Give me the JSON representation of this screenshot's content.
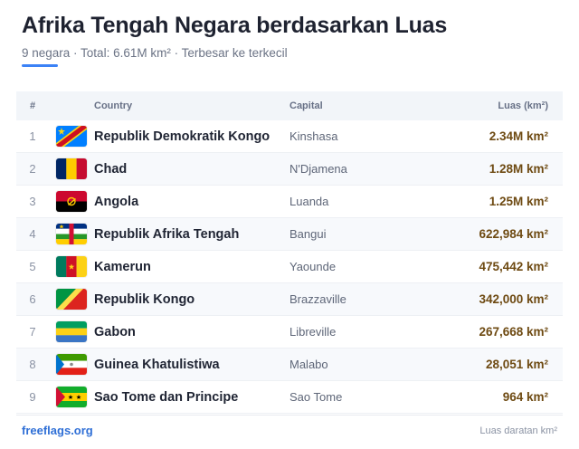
{
  "header": {
    "title": "Afrika Tengah Negara berdasarkan Luas",
    "subtitle": "9 negara · Total: 6.61M km² · Terbesar ke terkecil",
    "accent_color": "#3b82f6"
  },
  "table": {
    "columns": {
      "num": "#",
      "country": "Country",
      "capital": "Capital",
      "area": "Luas (km²)"
    },
    "rows": [
      {
        "num": "1",
        "country": "Republik Demokratik Kongo",
        "capital": "Kinshasa",
        "area": "2.34M km²",
        "flag_icon": "flag-cd-icon"
      },
      {
        "num": "2",
        "country": "Chad",
        "capital": "N'Djamena",
        "area": "1.28M km²",
        "flag_icon": "flag-td-icon"
      },
      {
        "num": "3",
        "country": "Angola",
        "capital": "Luanda",
        "area": "1.25M km²",
        "flag_icon": "flag-ao-icon"
      },
      {
        "num": "4",
        "country": "Republik Afrika Tengah",
        "capital": "Bangui",
        "area": "622,984 km²",
        "flag_icon": "flag-cf-icon"
      },
      {
        "num": "5",
        "country": "Kamerun",
        "capital": "Yaounde",
        "area": "475,442 km²",
        "flag_icon": "flag-cm-icon"
      },
      {
        "num": "6",
        "country": "Republik Kongo",
        "capital": "Brazzaville",
        "area": "342,000 km²",
        "flag_icon": "flag-cg-icon"
      },
      {
        "num": "7",
        "country": "Gabon",
        "capital": "Libreville",
        "area": "267,668 km²",
        "flag_icon": "flag-ga-icon"
      },
      {
        "num": "8",
        "country": "Guinea Khatulistiwa",
        "capital": "Malabo",
        "area": "28,051 km²",
        "flag_icon": "flag-gq-icon"
      },
      {
        "num": "9",
        "country": "Sao Tome dan Principe",
        "capital": "Sao Tome",
        "area": "964 km²",
        "flag_icon": "flag-st-icon"
      }
    ]
  },
  "footer": {
    "brand": "freeflags.org",
    "note": "Luas daratan km²"
  }
}
